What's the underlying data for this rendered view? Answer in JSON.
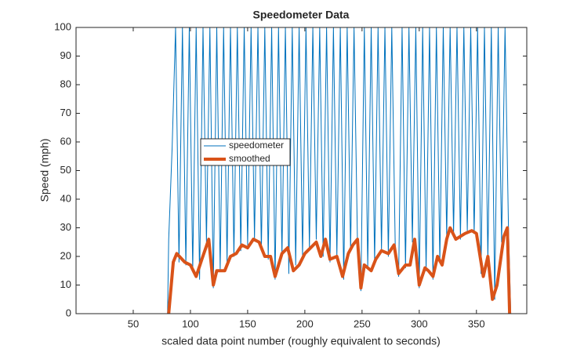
{
  "chart_data": {
    "type": "line",
    "title": "Speedometer Data",
    "xlabel": "scaled data point number (roughly equivalent to seconds)",
    "ylabel": "Speed (mph)",
    "xlim": [
      0,
      394
    ],
    "ylim": [
      0,
      100
    ],
    "xticks": [
      50,
      100,
      150,
      200,
      250,
      300,
      350
    ],
    "yticks": [
      0,
      10,
      20,
      30,
      40,
      50,
      60,
      70,
      80,
      90,
      100
    ],
    "legend_position": "west",
    "series": [
      {
        "name": "speedometer",
        "color": "#0072bd",
        "width": 1,
        "x": [
          0,
          80,
          81,
          84,
          87,
          90,
          93,
          96,
          99,
          102,
          105,
          108,
          111,
          114,
          117,
          120,
          123,
          126,
          129,
          132,
          135,
          138,
          141,
          144,
          147,
          150,
          153,
          156,
          159,
          162,
          165,
          168,
          171,
          174,
          177,
          180,
          183,
          186,
          189,
          192,
          195,
          198,
          201,
          204,
          207,
          210,
          213,
          216,
          219,
          222,
          225,
          228,
          231,
          234,
          237,
          240,
          243,
          246,
          249,
          252,
          255,
          258,
          261,
          264,
          267,
          270,
          273,
          276,
          279,
          282,
          285,
          288,
          291,
          294,
          297,
          300,
          303,
          306,
          309,
          312,
          315,
          318,
          321,
          324,
          327,
          330,
          333,
          336,
          339,
          342,
          345,
          348,
          351,
          354,
          357,
          360,
          363,
          366,
          369,
          372,
          375,
          378,
          380,
          394
        ],
        "values": [
          0,
          0,
          26,
          58,
          100,
          18,
          100,
          17,
          100,
          15,
          100,
          12,
          100,
          25,
          100,
          9,
          100,
          15,
          100,
          18,
          100,
          20,
          100,
          22,
          100,
          24,
          100,
          26,
          100,
          22,
          100,
          19,
          100,
          12,
          100,
          20,
          100,
          14,
          100,
          17,
          100,
          20,
          100,
          23,
          100,
          26,
          100,
          20,
          100,
          18,
          100,
          20,
          100,
          12,
          100,
          22,
          100,
          25,
          8,
          100,
          16,
          100,
          18,
          100,
          22,
          100,
          20,
          100,
          24,
          13,
          100,
          16,
          100,
          25,
          100,
          9,
          100,
          15,
          100,
          12,
          100,
          18,
          100,
          27,
          100,
          28,
          100,
          26,
          100,
          29,
          100,
          28,
          100,
          14,
          100,
          19,
          100,
          5,
          100,
          25,
          100,
          30,
          0,
          0
        ]
      },
      {
        "name": "smoothed",
        "color": "#d95319",
        "width": 4,
        "x": [
          81,
          85,
          88,
          95,
          100,
          105,
          110,
          116,
          120,
          123,
          130,
          135,
          140,
          145,
          150,
          155,
          160,
          165,
          170,
          174,
          180,
          185,
          190,
          195,
          200,
          205,
          210,
          214,
          218,
          222,
          228,
          233,
          238,
          242,
          246,
          249,
          252,
          258,
          262,
          267,
          273,
          278,
          282,
          288,
          292,
          296,
          300,
          305,
          308,
          312,
          316,
          320,
          324,
          327,
          332,
          340,
          346,
          350,
          356,
          360,
          364,
          368,
          374,
          377,
          379
        ],
        "values": [
          0,
          18,
          21,
          18,
          17,
          13,
          19,
          26,
          10,
          15,
          15,
          20,
          21,
          24,
          23,
          26,
          25,
          20,
          20,
          13,
          21,
          23,
          15,
          17,
          21,
          23,
          25,
          20,
          26,
          19,
          20,
          13,
          21,
          24,
          26,
          9,
          17,
          15,
          19,
          22,
          21,
          24,
          14,
          17,
          17,
          26,
          10,
          16,
          15,
          13,
          20,
          17,
          26,
          30,
          26,
          28,
          29,
          28,
          13,
          20,
          5,
          10,
          27,
          30,
          0
        ]
      }
    ]
  }
}
